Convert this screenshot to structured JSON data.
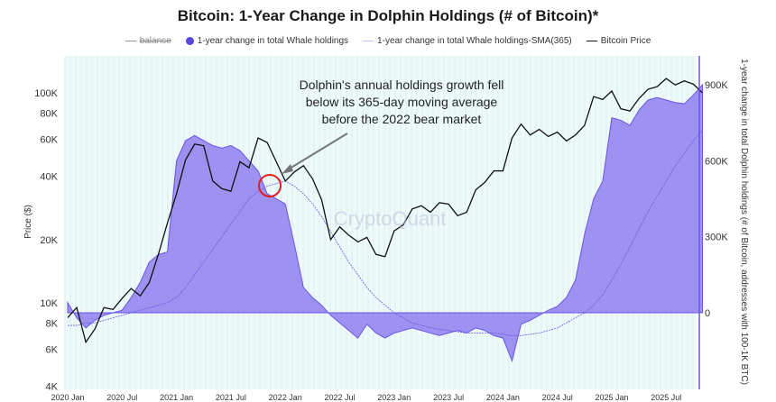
{
  "chart_data": {
    "type": "area",
    "title": "Bitcoin: 1-Year Change in Dolphin Holdings (# of Bitcoin)*",
    "legend": [
      "balance",
      "1-year change in total Whale holdings",
      "1-year change in total Whale holdings-SMA(365)",
      "Bitcoin Price"
    ],
    "legend_placement": "top",
    "ylabel_left": "Price ($)",
    "ylabel_right": "1-year change in total Dolphin holdings (# of Bitcoin, addresses with 100-1K BTC)",
    "left_scale": "log",
    "ylim_left": [
      4000,
      140000
    ],
    "ylim_right": [
      -300000,
      1000000
    ],
    "left_ticks": [
      {
        "v": 4000,
        "l": "4K"
      },
      {
        "v": 6000,
        "l": "6K"
      },
      {
        "v": 8000,
        "l": "8K"
      },
      {
        "v": 10000,
        "l": "10K"
      },
      {
        "v": 20000,
        "l": "20K"
      },
      {
        "v": 40000,
        "l": "40K"
      },
      {
        "v": 60000,
        "l": "60K"
      },
      {
        "v": 80000,
        "l": "80K"
      },
      {
        "v": 100000,
        "l": "100K"
      }
    ],
    "right_ticks": [
      {
        "v": 0,
        "l": "0"
      },
      {
        "v": 300000,
        "l": "300K"
      },
      {
        "v": 600000,
        "l": "600K"
      },
      {
        "v": 900000,
        "l": "900K"
      }
    ],
    "x_ticks": [
      "2020 Jan",
      "2020 Jul",
      "2021 Jan",
      "2021 Jul",
      "2022 Jan",
      "2022 Jul",
      "2023 Jan",
      "2023 Jul",
      "2024 Jan",
      "2024 Jul",
      "2025 Jan",
      "2025 Jul"
    ],
    "x_start": "2020-01",
    "x_step": "month",
    "series": [
      {
        "name": "Bitcoin Price",
        "color": "#111111",
        "values": [
          8500,
          9500,
          6500,
          7500,
          9500,
          9300,
          10500,
          11700,
          10800,
          12500,
          17000,
          24000,
          33000,
          48000,
          57000,
          56000,
          38000,
          35000,
          34000,
          47000,
          44000,
          61000,
          58000,
          47000,
          38000,
          42000,
          45000,
          39000,
          31000,
          20000,
          23000,
          21000,
          19500,
          20500,
          17000,
          16600,
          22000,
          23500,
          28000,
          29000,
          27000,
          30000,
          29500,
          26000,
          27000,
          34500,
          37500,
          42500,
          42500,
          61000,
          71000,
          63000,
          67000,
          62000,
          65000,
          59000,
          63000,
          70000,
          96000,
          93000,
          102000,
          84000,
          82000,
          94000,
          104000,
          107000,
          117000,
          109000,
          114000,
          110000,
          100000
        ]
      },
      {
        "name": "1-year change in total Whale holdings",
        "color": "#7b68ee",
        "values": [
          40000,
          -20000,
          -60000,
          -30000,
          -10000,
          0,
          10000,
          60000,
          120000,
          200000,
          230000,
          240000,
          600000,
          680000,
          700000,
          680000,
          660000,
          650000,
          660000,
          640000,
          600000,
          560000,
          470000,
          450000,
          430000,
          270000,
          100000,
          60000,
          30000,
          -10000,
          -40000,
          -70000,
          -100000,
          -45000,
          -80000,
          -100000,
          -80000,
          -70000,
          -60000,
          -70000,
          -80000,
          -90000,
          -80000,
          -70000,
          -80000,
          -60000,
          -70000,
          -90000,
          -100000,
          -190000,
          -45000,
          -30000,
          -10000,
          10000,
          25000,
          60000,
          130000,
          310000,
          450000,
          520000,
          770000,
          760000,
          740000,
          800000,
          840000,
          850000,
          840000,
          830000,
          825000,
          860000,
          900000
        ]
      },
      {
        "name": "1-year change in total Whale holdings-SMA(365)",
        "color": "#8a7cf0",
        "values": [
          -50000,
          -50000,
          -40000,
          -40000,
          -30000,
          -20000,
          -10000,
          0,
          10000,
          20000,
          30000,
          40000,
          60000,
          100000,
          150000,
          200000,
          250000,
          300000,
          350000,
          400000,
          450000,
          480000,
          500000,
          510000,
          520000,
          500000,
          470000,
          430000,
          380000,
          320000,
          260000,
          200000,
          150000,
          100000,
          60000,
          30000,
          0,
          -20000,
          -40000,
          -50000,
          -60000,
          -65000,
          -70000,
          -75000,
          -80000,
          -80000,
          -80000,
          -80000,
          -85000,
          -90000,
          -90000,
          -85000,
          -80000,
          -70000,
          -60000,
          -40000,
          -20000,
          0,
          30000,
          70000,
          130000,
          190000,
          260000,
          330000,
          400000,
          460000,
          520000,
          580000,
          630000,
          680000,
          720000
        ]
      }
    ],
    "annotation": "Dolphin's annual holdings growth fell below its 365-day moving average before the 2022 bear market",
    "annotation_lines": [
      "Dolphin's annual holdings growth fell",
      "below its 365-day moving average",
      "before the 2022 bear market"
    ],
    "watermark": "CryptoQuant"
  }
}
